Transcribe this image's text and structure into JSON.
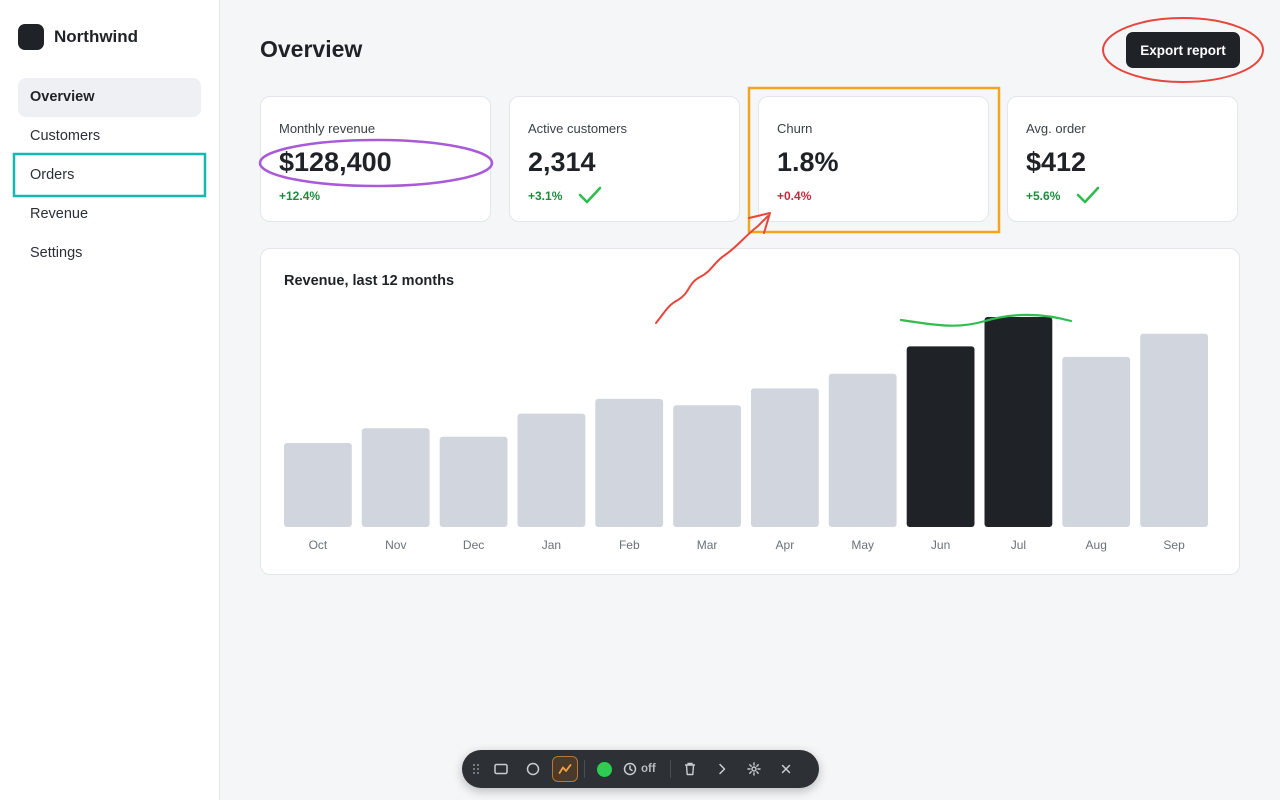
{
  "brand": {
    "name": "Northwind"
  },
  "nav": {
    "items": [
      {
        "label": "Overview",
        "active": true
      },
      {
        "label": "Customers",
        "active": false
      },
      {
        "label": "Orders",
        "active": false
      },
      {
        "label": "Revenue",
        "active": false
      },
      {
        "label": "Settings",
        "active": false
      }
    ]
  },
  "header": {
    "title": "Overview",
    "export_label": "Export report"
  },
  "kpis": [
    {
      "label": "Monthly revenue",
      "value": "$128,400",
      "delta": "+12.4%",
      "trend": "up"
    },
    {
      "label": "Active customers",
      "value": "2,314",
      "delta": "+3.1%",
      "trend": "up"
    },
    {
      "label": "Churn",
      "value": "1.8%",
      "delta": "+0.4%",
      "trend": "down"
    },
    {
      "label": "Avg. order",
      "value": "$412",
      "delta": "+5.6%",
      "trend": "up"
    }
  ],
  "chart_data": {
    "type": "bar",
    "title": "Revenue, last 12 months",
    "categories": [
      "Oct",
      "Nov",
      "Dec",
      "Jan",
      "Feb",
      "Mar",
      "Apr",
      "May",
      "Jun",
      "Jul",
      "Aug",
      "Sep"
    ],
    "values": [
      40,
      47,
      43,
      54,
      61,
      58,
      66,
      73,
      86,
      100,
      81,
      92
    ],
    "highlighted": [
      "Jun",
      "Jul"
    ],
    "ylim": [
      0,
      100
    ],
    "grid": false,
    "colors": {
      "bar": "#d1d6de",
      "highlight": "#1f2328"
    }
  },
  "toolbar": {
    "timer_label": "off",
    "status_color": "#2ecc52"
  },
  "colors": {
    "accent": "#1f2328",
    "positive": "#1f8b3e",
    "negative": "#c6283b"
  }
}
